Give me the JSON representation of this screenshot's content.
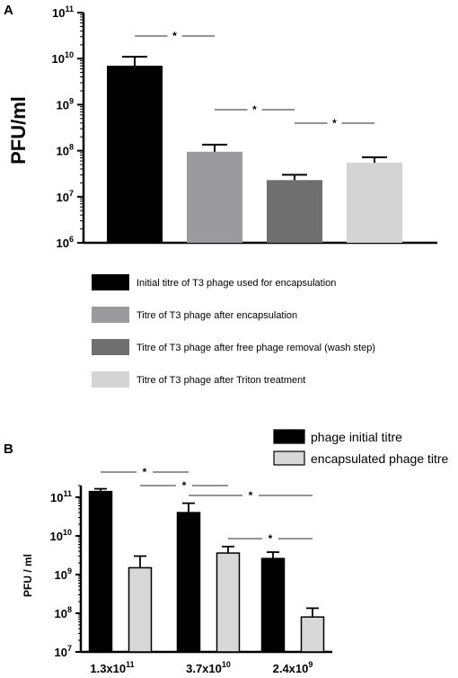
{
  "colors": {
    "initial": "#000000",
    "after_encapsulation": "#9b9b9e",
    "after_wash": "#6f6f6f",
    "after_triton": "#d4d4d4",
    "encapsulated_b": "#d8d8d8",
    "sig_line": "#555555"
  },
  "chart_data": [
    {
      "panel": "A",
      "type": "bar",
      "ylabel": "PFU/ml",
      "log_scale": true,
      "ylim": [
        1000000.0,
        100000000000.0
      ],
      "tick_exponents": [
        6,
        7,
        8,
        9,
        10,
        11
      ],
      "tick_base": "10",
      "categories": [
        "Initial titre of T3 phage used for encapsulation",
        "Titre of T3 phage after encapsulation",
        "Titre of T3 phage after free phage removal (wash step)",
        "Titre of T3 phage after Triton treatment"
      ],
      "values": [
        7000000000.0,
        95000000.0,
        23000000.0,
        55000000.0
      ],
      "errors_upper": [
        11000000000.0,
        135000000.0,
        30000000.0,
        72000000.0
      ],
      "significance": [
        {
          "from": 0,
          "to": 1,
          "label": "*"
        },
        {
          "from": 1,
          "to": 2,
          "label": "*"
        },
        {
          "from": 2,
          "to": 3,
          "label": "*"
        }
      ]
    },
    {
      "panel": "B",
      "type": "bar",
      "ylabel": "PFU / ml",
      "log_scale": true,
      "ylim": [
        10000000.0,
        200000000000.0
      ],
      "tick_exponents": [
        7,
        8,
        9,
        10,
        11
      ],
      "tick_base": "10",
      "categories": [
        {
          "mantissa": "1.3x10",
          "exp": "11"
        },
        {
          "mantissa": "3.7x10",
          "exp": "10"
        },
        {
          "mantissa": "2.4x10",
          "exp": "9"
        }
      ],
      "series": [
        {
          "name": "phage initial titre",
          "values": [
            140000000000.0,
            40000000000.0,
            2600000000.0
          ],
          "errors_upper": [
            165000000000.0,
            70000000000.0,
            3800000000.0
          ]
        },
        {
          "name": "encapsulated phage titre",
          "values": [
            1500000000.0,
            3600000000.0,
            80000000.0
          ],
          "errors_upper": [
            3000000000.0,
            5300000000.0,
            135000000.0
          ]
        }
      ],
      "significance": [
        {
          "label": "*"
        },
        {
          "label": "*"
        },
        {
          "label": "*"
        },
        {
          "label": "*"
        }
      ]
    }
  ]
}
